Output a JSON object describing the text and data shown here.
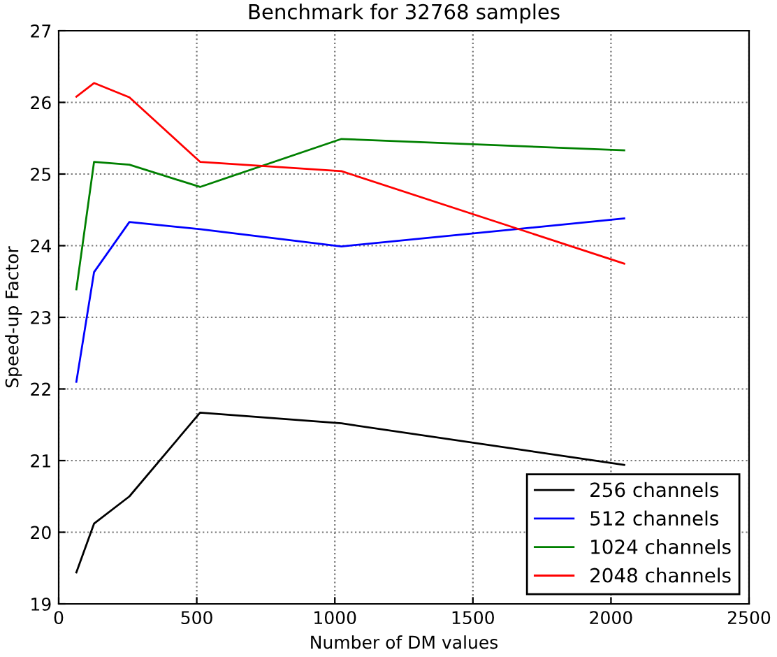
{
  "chart_data": {
    "type": "line",
    "title": "Benchmark for 32768 samples",
    "xlabel": "Number of DM values",
    "ylabel": "Speed-up Factor",
    "x": [
      64,
      128,
      256,
      512,
      1024,
      2048
    ],
    "series": [
      {
        "name": "256 channels",
        "color": "#000000",
        "values": [
          19.44,
          20.12,
          20.5,
          21.67,
          21.52,
          20.94
        ]
      },
      {
        "name": "512 channels",
        "color": "#0000ff",
        "values": [
          22.1,
          23.63,
          24.33,
          24.23,
          23.99,
          24.38
        ]
      },
      {
        "name": "1024 channels",
        "color": "#008000",
        "values": [
          23.39,
          25.17,
          25.13,
          24.82,
          25.49,
          25.33
        ]
      },
      {
        "name": "2048 channels",
        "color": "#ff0000",
        "values": [
          26.08,
          26.27,
          26.07,
          25.17,
          25.04,
          23.75
        ]
      }
    ],
    "xlim": [
      0,
      2500
    ],
    "xticks": [
      0,
      500,
      1000,
      1500,
      2000,
      2500
    ],
    "ylim": [
      19,
      27
    ],
    "yticks": [
      19,
      20,
      21,
      22,
      23,
      24,
      25,
      26,
      27
    ],
    "grid": true,
    "legend": "bottom right",
    "marker": "none",
    "line_style": "solid"
  }
}
